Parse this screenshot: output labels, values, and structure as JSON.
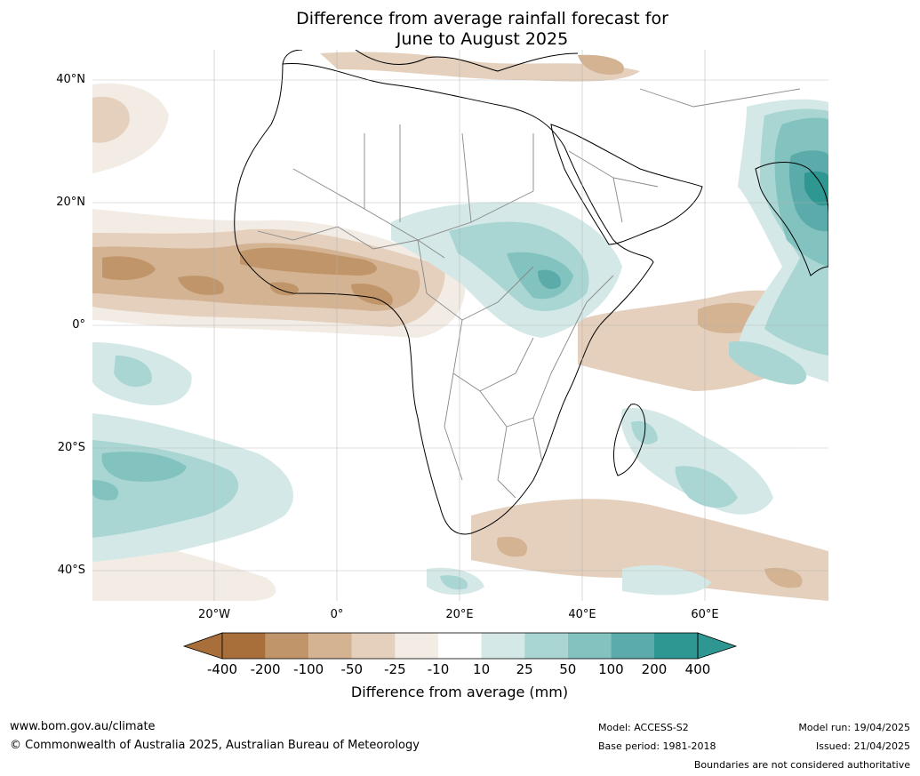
{
  "title": {
    "line1": "Difference from average rainfall forecast for",
    "line2": "June to August 2025"
  },
  "lat_labels": [
    "40°N",
    "20°N",
    "0°",
    "20°S",
    "40°S"
  ],
  "lon_labels": [
    "20°W",
    "0°",
    "20°E",
    "40°E",
    "60°E"
  ],
  "colorbar": {
    "title": "Difference from average (mm)",
    "ticks": [
      "-400",
      "-200",
      "-100",
      "-50",
      "-25",
      "-10",
      "10",
      "25",
      "50",
      "100",
      "200",
      "400"
    ],
    "colors": [
      "#a86f3a",
      "#c0956a",
      "#d4b393",
      "#e4d0bd",
      "#f2ece5",
      "#ffffff",
      "#d4e9e7",
      "#a9d6d3",
      "#82c2bf",
      "#5aabaa",
      "#2f9792"
    ],
    "under_color": "#a86f3a",
    "over_color": "#2f9792"
  },
  "footer": {
    "url": "www.bom.gov.au/climate",
    "copyright": "© Commonwealth of Australia 2025, Australian Bureau of Meteorology",
    "model": "Model: ACCESS-S2",
    "base_period": "Base period: 1981-2018",
    "model_run": "Model run: 19/04/2025",
    "issued": "Issued: 21/04/2025",
    "disclaimer": "Boundaries are not considered authoritative"
  }
}
